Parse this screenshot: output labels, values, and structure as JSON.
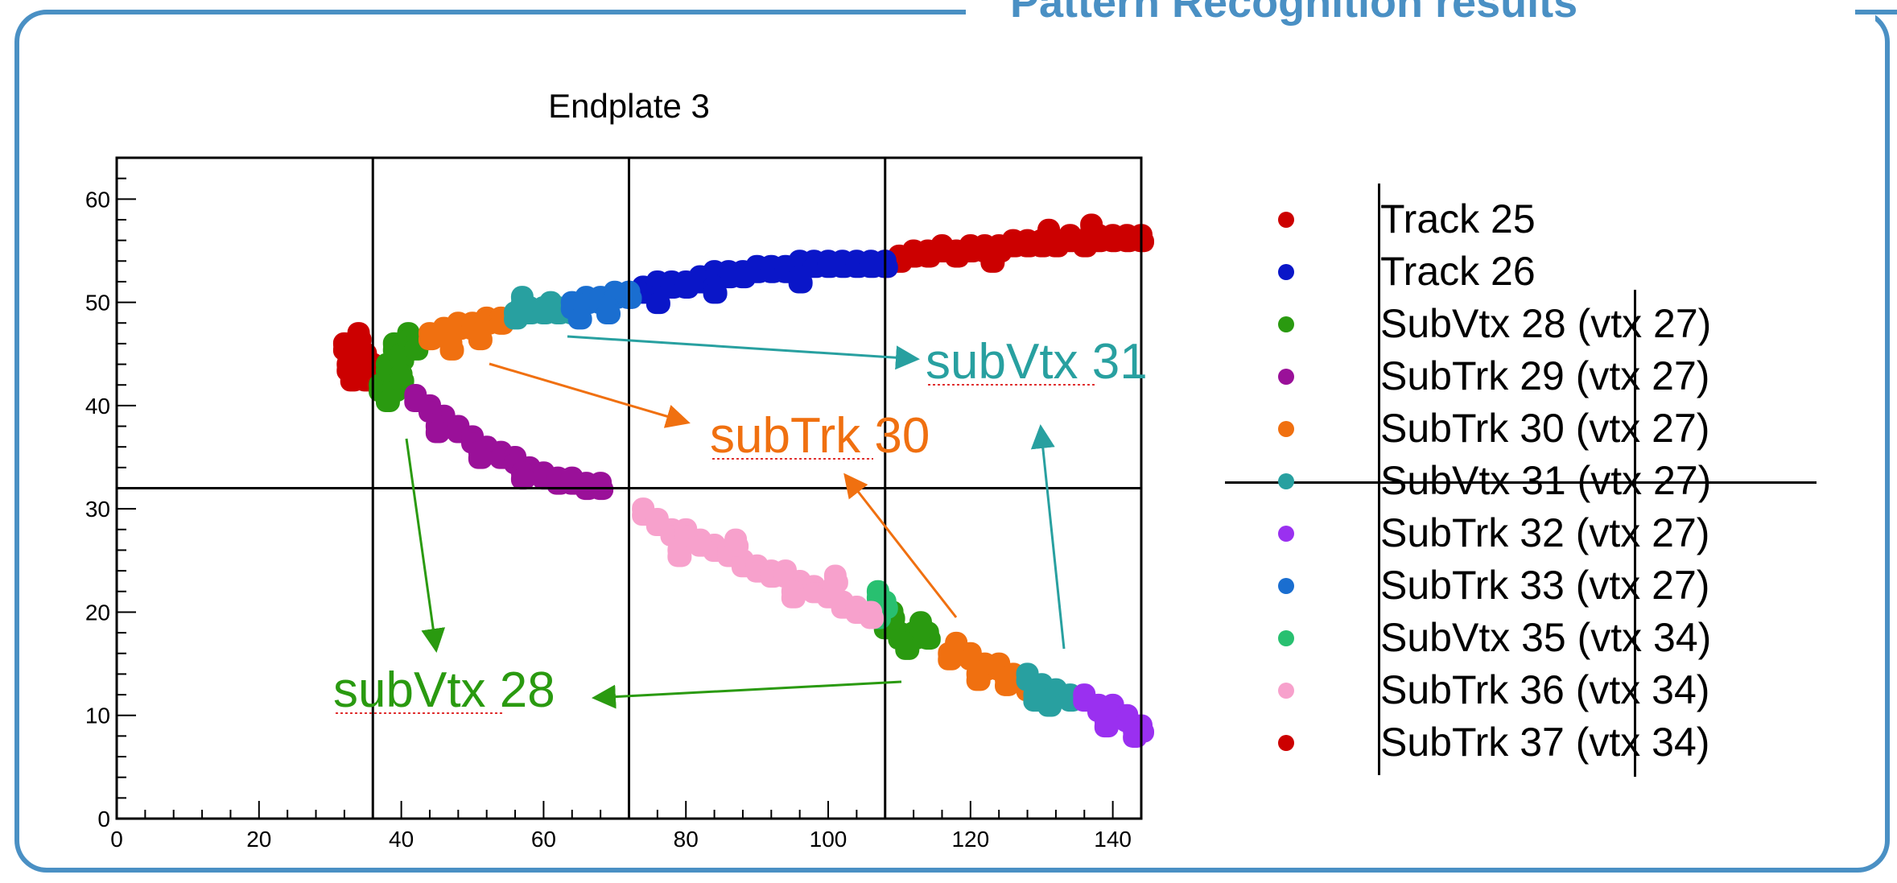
{
  "slide": {
    "title": "Pattern Recognition results"
  },
  "chart_data": {
    "type": "scatter",
    "title": "Endplate 3",
    "xlabel": "",
    "ylabel": "",
    "xlim": [
      0,
      144
    ],
    "ylim": [
      0,
      64
    ],
    "xticks": [
      0,
      20,
      40,
      60,
      80,
      100,
      120,
      140
    ],
    "yticks": [
      0,
      10,
      20,
      30,
      40,
      50,
      60
    ],
    "grid": "lines at x=36, 72, 108 and y=32",
    "grid_x": [
      36,
      72,
      108
    ],
    "grid_y": [
      32
    ],
    "series": [
      {
        "name": "Track 25",
        "color": "#cc0000",
        "points": [
          [
            32,
            46
          ],
          [
            32.5,
            44
          ],
          [
            33,
            45
          ],
          [
            34,
            46
          ],
          [
            35,
            45
          ],
          [
            34,
            47
          ],
          [
            35,
            43
          ],
          [
            33,
            43
          ],
          [
            36,
            44
          ],
          [
            108,
            54
          ],
          [
            110,
            54.5
          ],
          [
            112,
            55
          ],
          [
            114,
            55
          ],
          [
            116,
            55.5
          ],
          [
            118,
            55
          ],
          [
            120,
            55.5
          ],
          [
            122,
            55.5
          ],
          [
            124,
            55.5
          ],
          [
            126,
            56
          ],
          [
            128,
            56
          ],
          [
            130,
            56
          ],
          [
            132,
            56
          ],
          [
            134,
            56.5
          ],
          [
            136,
            56
          ],
          [
            138,
            56.5
          ],
          [
            140,
            56.5
          ],
          [
            142,
            56.5
          ],
          [
            144,
            56.5
          ],
          [
            131,
            57
          ],
          [
            137,
            57.5
          ],
          [
            123,
            54.5
          ]
        ]
      },
      {
        "name": "Track 26",
        "color": "#0a16c8",
        "points": [
          [
            72,
            51
          ],
          [
            74,
            51.5
          ],
          [
            76,
            52
          ],
          [
            78,
            52
          ],
          [
            80,
            52
          ],
          [
            82,
            52.5
          ],
          [
            84,
            53
          ],
          [
            86,
            53
          ],
          [
            88,
            53
          ],
          [
            90,
            53.5
          ],
          [
            92,
            53.5
          ],
          [
            94,
            53.5
          ],
          [
            96,
            54
          ],
          [
            98,
            54
          ],
          [
            100,
            54
          ],
          [
            102,
            54
          ],
          [
            104,
            54
          ],
          [
            106,
            54
          ],
          [
            108,
            54
          ],
          [
            76,
            50.5
          ],
          [
            84,
            51.5
          ],
          [
            96,
            52.5
          ]
        ]
      },
      {
        "name": "SubVtx 28 (vtx 27)",
        "color": "#2a9a10",
        "points": [
          [
            37,
            42
          ],
          [
            38,
            44
          ],
          [
            39,
            46
          ],
          [
            40,
            45
          ],
          [
            41,
            47
          ],
          [
            42,
            46
          ],
          [
            38,
            41
          ],
          [
            39,
            42
          ],
          [
            40,
            43
          ],
          [
            108,
            19
          ],
          [
            110,
            18
          ],
          [
            112,
            18
          ],
          [
            114,
            18
          ],
          [
            109,
            20
          ],
          [
            111,
            17
          ],
          [
            113,
            19
          ]
        ]
      },
      {
        "name": "SubTrk 29 (vtx 27)",
        "color": "#9a1099",
        "points": [
          [
            42,
            41
          ],
          [
            44,
            40
          ],
          [
            46,
            39
          ],
          [
            48,
            38
          ],
          [
            50,
            37
          ],
          [
            52,
            36
          ],
          [
            54,
            35.5
          ],
          [
            56,
            35
          ],
          [
            58,
            34
          ],
          [
            60,
            33.5
          ],
          [
            62,
            33
          ],
          [
            64,
            33
          ],
          [
            66,
            32.5
          ],
          [
            68,
            32.5
          ],
          [
            45,
            38
          ],
          [
            51,
            35.5
          ],
          [
            57,
            33.5
          ]
        ]
      },
      {
        "name": "SubTrk 30 (vtx 27)",
        "color": "#f07010",
        "points": [
          [
            44,
            47
          ],
          [
            46,
            47.5
          ],
          [
            48,
            48
          ],
          [
            50,
            48
          ],
          [
            52,
            48.5
          ],
          [
            54,
            48.5
          ],
          [
            47,
            46
          ],
          [
            51,
            47
          ],
          [
            118,
            17
          ],
          [
            120,
            16
          ],
          [
            122,
            15
          ],
          [
            124,
            15
          ],
          [
            126,
            14
          ],
          [
            128,
            13
          ],
          [
            117,
            16
          ],
          [
            121,
            14
          ],
          [
            125,
            13.5
          ]
        ]
      },
      {
        "name": "SubVtx 31 (vtx 27)",
        "color": "#28a0a0",
        "points": [
          [
            56,
            49
          ],
          [
            58,
            49.5
          ],
          [
            60,
            49.5
          ],
          [
            62,
            49.5
          ],
          [
            64,
            49.5
          ],
          [
            57,
            50.5
          ],
          [
            61,
            50
          ],
          [
            128,
            14
          ],
          [
            130,
            13
          ],
          [
            132,
            12.5
          ],
          [
            134,
            12
          ],
          [
            131,
            11.5
          ],
          [
            129,
            12
          ]
        ]
      },
      {
        "name": "SubTrk 32 (vtx 27)",
        "color": "#9a30f0",
        "points": [
          [
            136,
            12
          ],
          [
            138,
            11
          ],
          [
            140,
            11
          ],
          [
            142,
            10
          ],
          [
            144,
            9
          ],
          [
            139,
            9.5
          ],
          [
            143,
            8.5
          ]
        ]
      },
      {
        "name": "SubTrk 33 (vtx 27)",
        "color": "#1a6ed0",
        "points": [
          [
            64,
            50
          ],
          [
            66,
            50.5
          ],
          [
            68,
            50.5
          ],
          [
            70,
            51
          ],
          [
            72,
            51
          ],
          [
            65,
            49
          ],
          [
            69,
            49.5
          ]
        ]
      },
      {
        "name": "SubVtx 35 (vtx 34)",
        "color": "#28c070",
        "points": [
          [
            107,
            22
          ],
          [
            107,
            20
          ],
          [
            108,
            21
          ]
        ]
      },
      {
        "name": "SubTrk 36 (vtx 34)",
        "color": "#f7a1cc",
        "points": [
          [
            74,
            30
          ],
          [
            76,
            29
          ],
          [
            78,
            28
          ],
          [
            80,
            28
          ],
          [
            82,
            27
          ],
          [
            84,
            26.5
          ],
          [
            86,
            26
          ],
          [
            88,
            25
          ],
          [
            90,
            24.5
          ],
          [
            92,
            24
          ],
          [
            94,
            24
          ],
          [
            96,
            23
          ],
          [
            98,
            22.5
          ],
          [
            100,
            22
          ],
          [
            102,
            21
          ],
          [
            104,
            20.5
          ],
          [
            106,
            20
          ],
          [
            79,
            26
          ],
          [
            87,
            27
          ],
          [
            95,
            22
          ],
          [
            101,
            23.5
          ]
        ]
      },
      {
        "name": "SubTrk 37 (vtx 34)",
        "color": "#cc0000",
        "points": []
      }
    ],
    "annotations": [
      {
        "text": "subVtx 31",
        "color": "#28a0a0"
      },
      {
        "text": "subTrk 30",
        "color": "#f07010"
      },
      {
        "text": "subVtx 28",
        "color": "#2a9a10"
      }
    ]
  }
}
